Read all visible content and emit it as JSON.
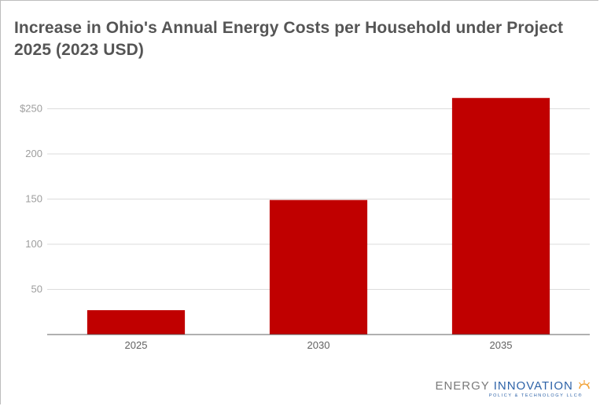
{
  "chart_data": {
    "type": "bar",
    "title": "Increase in Ohio's Annual Energy Costs per Household under Project 2025 (2023 USD)",
    "categories": [
      "2025",
      "2030",
      "2035"
    ],
    "values": [
      27,
      149,
      262
    ],
    "ylim": [
      0,
      287
    ],
    "yticks": [
      {
        "value": 50,
        "label": "50"
      },
      {
        "value": 100,
        "label": "100"
      },
      {
        "value": 150,
        "label": "150"
      },
      {
        "value": 200,
        "label": "200"
      },
      {
        "value": 250,
        "label": "$250"
      }
    ],
    "xlabel": "",
    "ylabel": "",
    "grid": true,
    "bar_color": "#c00000"
  },
  "logo": {
    "part1": "ENERGY ",
    "part2": "INNOVATION",
    "tagline": "POLICY & TECHNOLOGY LLC®"
  }
}
